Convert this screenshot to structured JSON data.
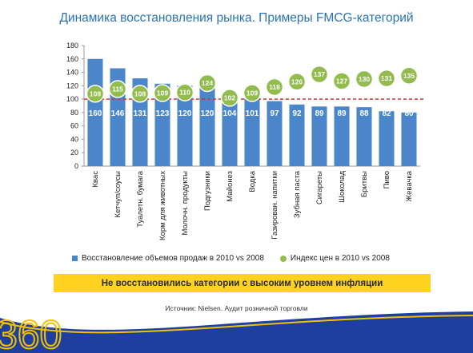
{
  "title": "Динамика восстановления рынка. Примеры FMCG-категорий",
  "legend": {
    "volumes": "Восстановление объемов продаж в 2010 vs 2008",
    "prices": "Индекс цен в 2010 vs 2008"
  },
  "banner": "Не восстановились категории с высоким уровнем инфляции",
  "source": "Источник: Nielsen. Аудит розничной торговли",
  "logo_text": "360",
  "colors": {
    "bar": "#4a86c9",
    "dot": "#92bd4e",
    "reference_line": "#d6322b",
    "title": "#2a73b3",
    "banner": "#ffd21f",
    "footer_blue": "#1f3fa0"
  },
  "chart_data": {
    "type": "bar",
    "categories": [
      "Квас",
      "Кетчуп/соусы",
      "Туалетн. бумага",
      "Корм для животных",
      "Молочн. продукты",
      "Подгузники",
      "Майонез",
      "Водка",
      "Газирован. напитки",
      "Зубная паста",
      "Сигареты",
      "Шоколад",
      "Бритвы",
      "Пиво",
      "Жевачка"
    ],
    "series": [
      {
        "name": "Восстановление объемов продаж в 2010 vs 2008",
        "type": "bar",
        "values": [
          160,
          146,
          131,
          123,
          120,
          120,
          104,
          101,
          97,
          92,
          89,
          89,
          88,
          82,
          80
        ]
      },
      {
        "name": "Индекс цен в 2010 vs 2008",
        "type": "scatter",
        "values": [
          108,
          115,
          108,
          109,
          110,
          124,
          102,
          109,
          118,
          126,
          137,
          127,
          130,
          131,
          135
        ]
      }
    ],
    "ylim": [
      0,
      180
    ],
    "yticks": [
      0,
      20,
      40,
      60,
      80,
      100,
      120,
      140,
      160,
      180
    ],
    "reference_line": 100,
    "legend_position": "bottom"
  }
}
